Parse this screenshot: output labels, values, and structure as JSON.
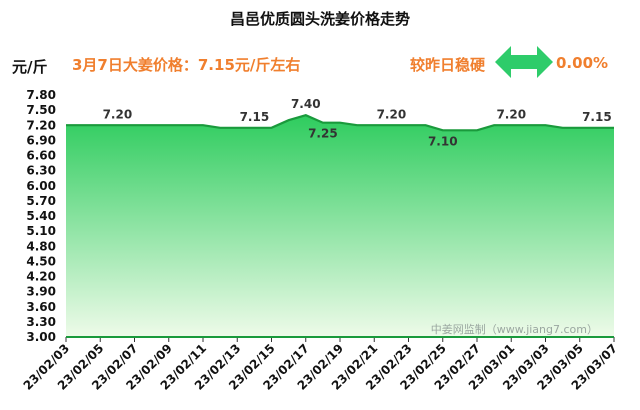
{
  "header": {
    "title": "昌邑优质圆头洗姜价格走势",
    "unit": "元/斤",
    "price_note": "3月7日大姜价格：7.15元/斤左右",
    "compare_label": "较昨日稳硬",
    "compare_icon": "double-arrow-icon",
    "change_pct": "0.00%"
  },
  "colors": {
    "line": "#1a9a3c",
    "fill_top": "#2ecc5e",
    "fill_bottom": "#eefbe9",
    "accent": "#f07f2e",
    "arrow": "#2ecc6a"
  },
  "chart_data": {
    "type": "area",
    "x": [
      "23/02/03",
      "23/02/04",
      "23/02/05",
      "23/02/06",
      "23/02/07",
      "23/02/08",
      "23/02/09",
      "23/02/10",
      "23/02/11",
      "23/02/12",
      "23/02/13",
      "23/02/14",
      "23/02/15",
      "23/02/16",
      "23/02/17",
      "23/02/18",
      "23/02/19",
      "23/02/20",
      "23/02/21",
      "23/02/22",
      "23/02/23",
      "23/02/24",
      "23/02/25",
      "23/02/26",
      "23/02/27",
      "23/02/28",
      "23/03/01",
      "23/03/02",
      "23/03/03",
      "23/03/04",
      "23/03/05",
      "23/03/06",
      "23/03/07"
    ],
    "values": [
      7.2,
      7.2,
      7.2,
      7.2,
      7.2,
      7.2,
      7.2,
      7.2,
      7.2,
      7.15,
      7.15,
      7.15,
      7.15,
      7.3,
      7.4,
      7.25,
      7.25,
      7.2,
      7.2,
      7.2,
      7.2,
      7.2,
      7.1,
      7.1,
      7.1,
      7.2,
      7.2,
      7.2,
      7.2,
      7.15,
      7.15,
      7.15,
      7.15
    ],
    "xtick_labels": [
      "23/02/03",
      "23/02/05",
      "23/02/07",
      "23/02/09",
      "23/02/11",
      "23/02/13",
      "23/02/15",
      "23/02/17",
      "23/02/19",
      "23/02/21",
      "23/02/23",
      "23/02/25",
      "23/02/27",
      "23/03/01",
      "23/03/03",
      "23/03/05",
      "23/03/07"
    ],
    "yticks": [
      "3.00",
      "3.30",
      "3.60",
      "3.90",
      "4.20",
      "4.50",
      "4.80",
      "5.10",
      "5.40",
      "5.70",
      "6.00",
      "6.30",
      "6.60",
      "6.90",
      "7.20",
      "7.50",
      "7.80"
    ],
    "ylim": [
      3.0,
      7.8
    ],
    "data_labels": [
      {
        "x": "23/02/06",
        "text": "7.20",
        "pos": "above"
      },
      {
        "x": "23/02/14",
        "text": "7.15",
        "pos": "above"
      },
      {
        "x": "23/02/17",
        "text": "7.40",
        "pos": "above"
      },
      {
        "x": "23/02/18",
        "text": "7.25",
        "pos": "below"
      },
      {
        "x": "23/02/22",
        "text": "7.20",
        "pos": "above"
      },
      {
        "x": "23/02/25",
        "text": "7.10",
        "pos": "below"
      },
      {
        "x": "23/03/01",
        "text": "7.20",
        "pos": "above"
      },
      {
        "x": "23/03/06",
        "text": "7.15",
        "pos": "above"
      }
    ],
    "grid": false,
    "legend": "none",
    "watermark": "中姜网监制（www.jiang7.com）"
  }
}
